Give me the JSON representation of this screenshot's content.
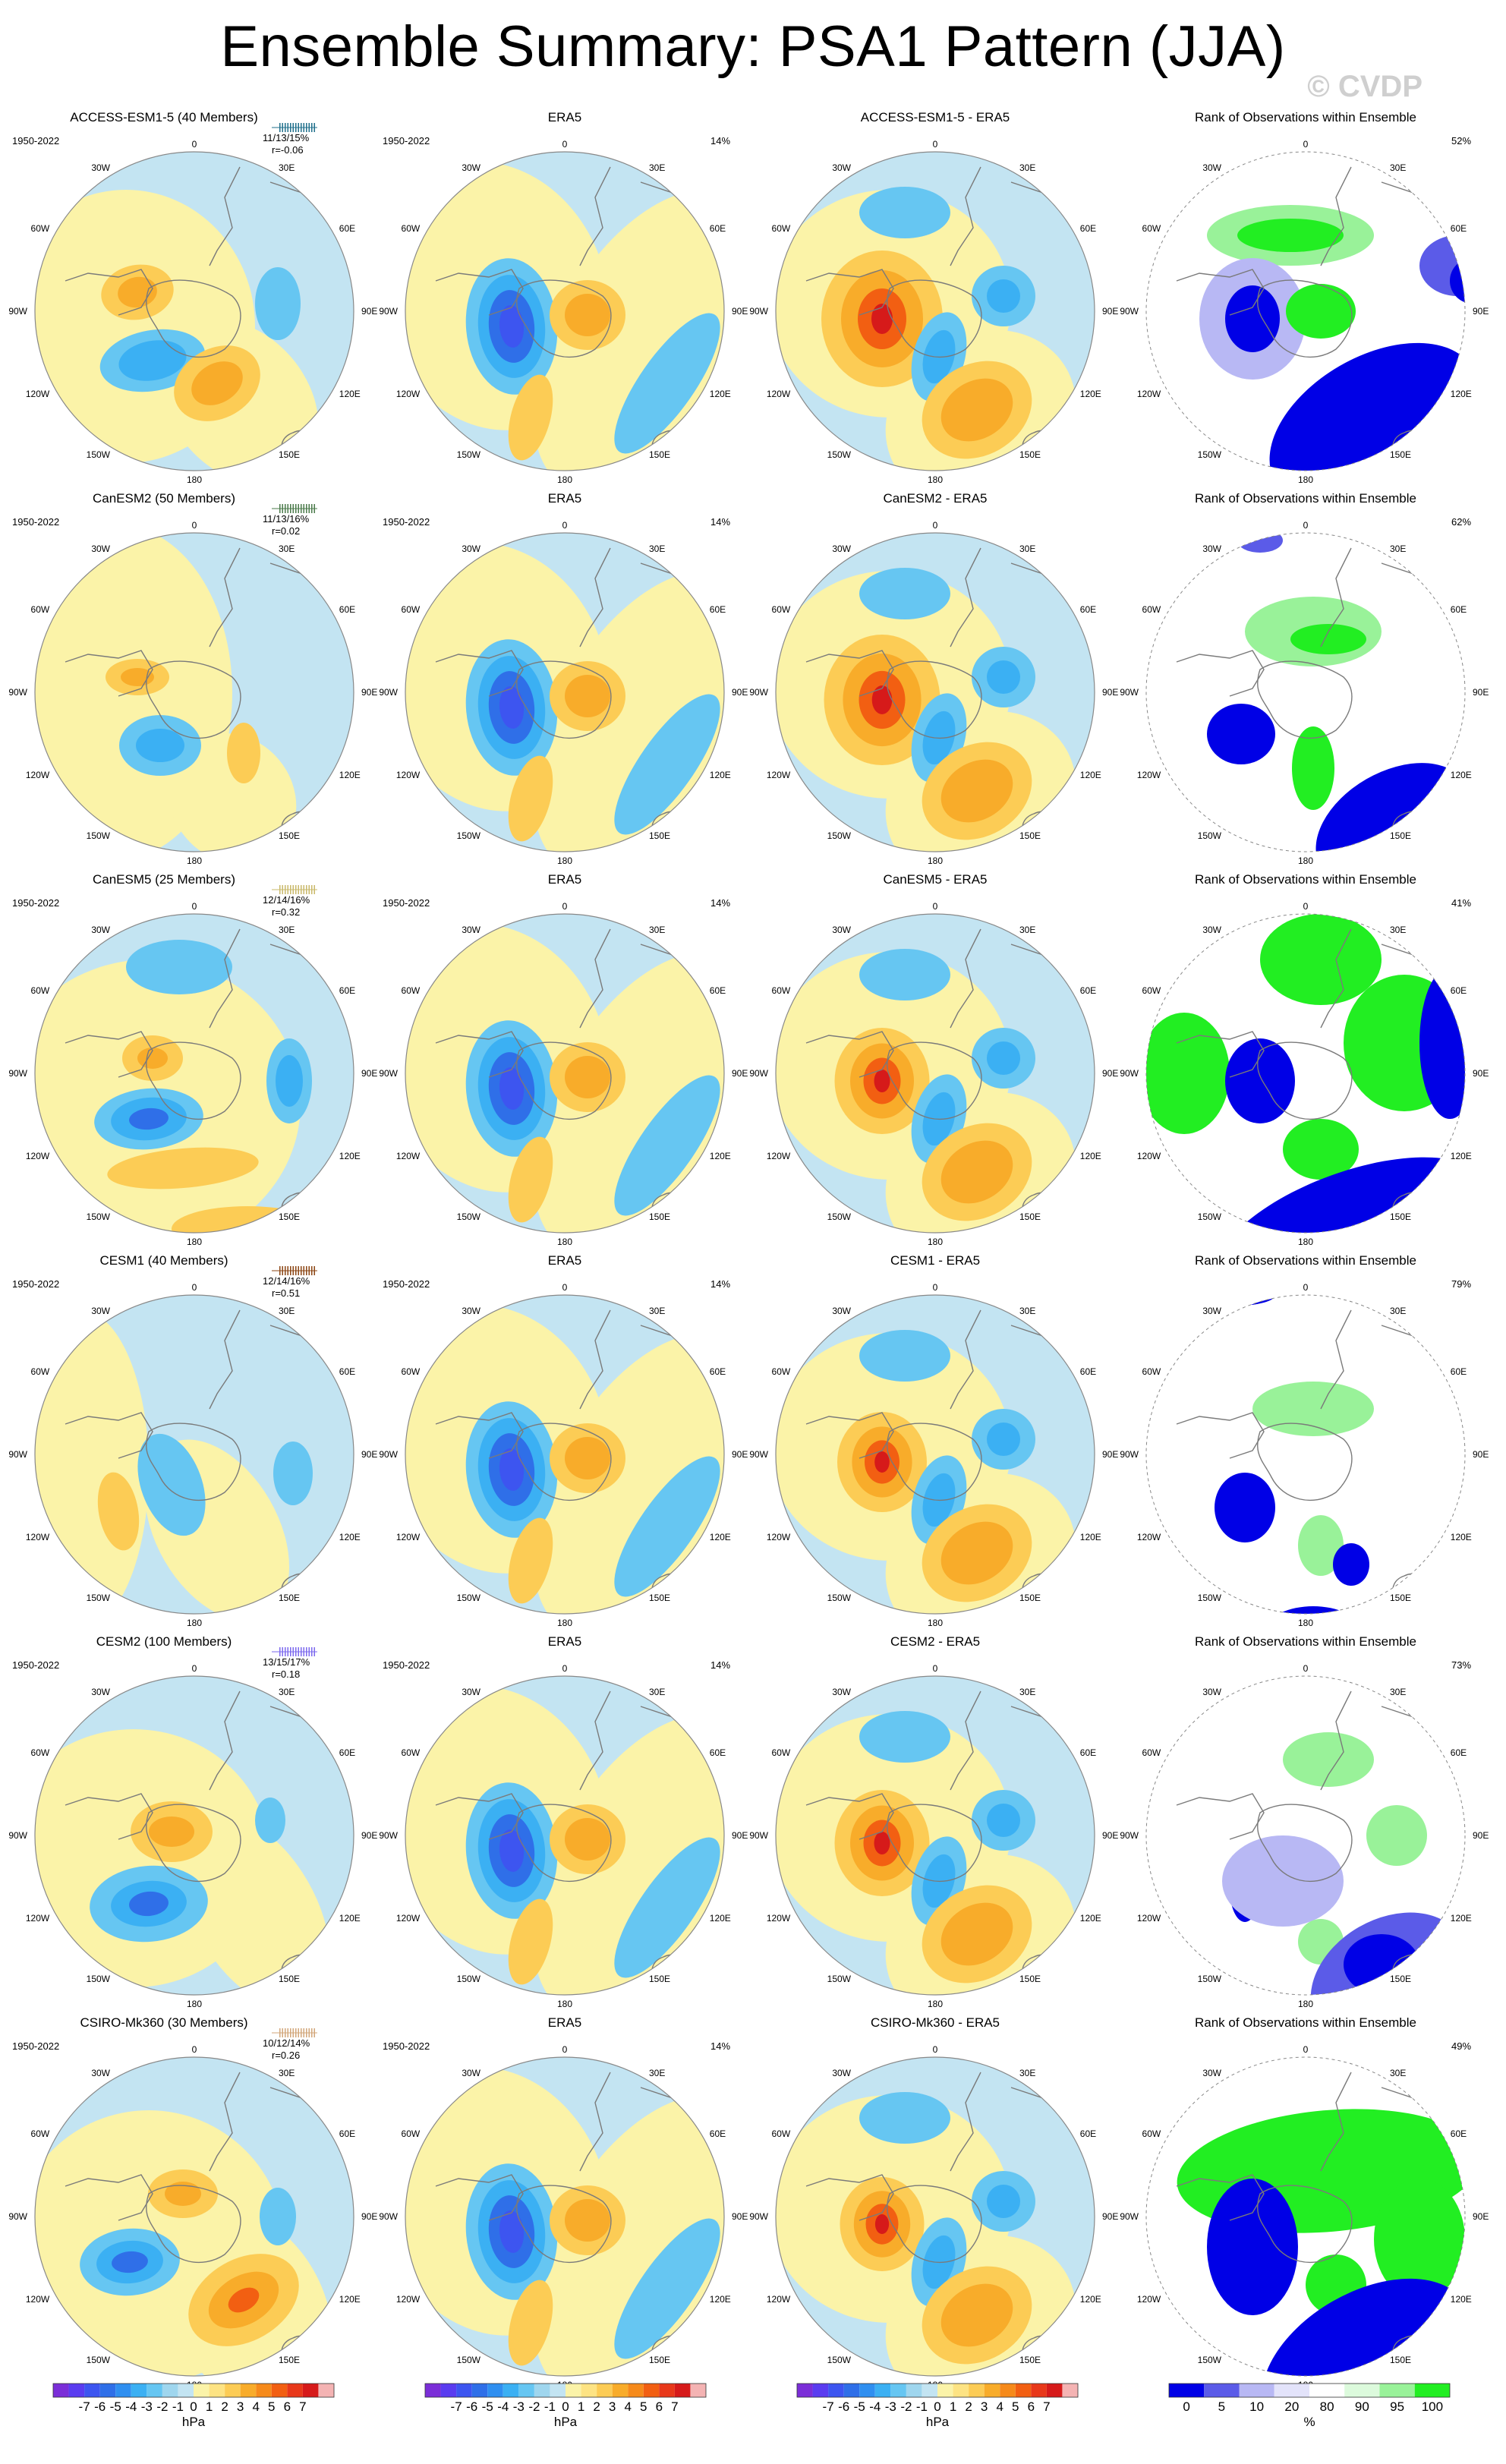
{
  "title": "Ensemble Summary: PSA1 Pattern (JJA)",
  "watermark": "© CVDP",
  "period": "1950-2022",
  "obs_name": "ERA5",
  "obs_pct": "14%",
  "rank_title": "Rank of Observations within Ensemble",
  "colors": {
    "model_colors": [
      "#1f6f8b",
      "#4a7a4a",
      "#c9b86a",
      "#8b4513",
      "#7b68ee",
      "#d2a679"
    ],
    "land_outline": "#7a7a7a",
    "circle": "#888888"
  },
  "lon_labels": {
    "top": "0",
    "bottom": "180",
    "right": [
      "30E",
      "60E",
      "90E",
      "120E",
      "150E"
    ],
    "left": [
      "30W",
      "60W",
      "90W",
      "120W",
      "150W"
    ]
  },
  "rows": [
    {
      "model": "ACCESS-ESM1-5 (40 Members)",
      "diff": "ACCESS-ESM1-5 - ERA5",
      "stats": "11/13/15%",
      "r": "r=-0.06",
      "rank_pct": "52%"
    },
    {
      "model": "CanESM2 (50 Members)",
      "diff": "CanESM2 - ERA5",
      "stats": "11/13/16%",
      "r": "r=0.02",
      "rank_pct": "62%"
    },
    {
      "model": "CanESM5 (25 Members)",
      "diff": "CanESM5 - ERA5",
      "stats": "12/14/16%",
      "r": "r=0.32",
      "rank_pct": "41%"
    },
    {
      "model": "CESM1 (40 Members)",
      "diff": "CESM1 - ERA5",
      "stats": "12/14/16%",
      "r": "r=0.51",
      "rank_pct": "79%"
    },
    {
      "model": "CESM2 (100 Members)",
      "diff": "CESM2 - ERA5",
      "stats": "13/15/17%",
      "r": "r=0.18",
      "rank_pct": "73%"
    },
    {
      "model": "CSIRO-Mk360 (30 Members)",
      "diff": "CSIRO-Mk360 - ERA5",
      "stats": "10/12/14%",
      "r": "r=0.26",
      "rank_pct": "49%"
    }
  ],
  "colorbar_hpa": {
    "labels": [
      "-7",
      "-6",
      "-5",
      "-4",
      "-3",
      "-2",
      "-1",
      "0",
      "1",
      "2",
      "3",
      "4",
      "5",
      "6",
      "7"
    ],
    "units": "hPa",
    "colors": [
      "#7b2ed8",
      "#5a3cf0",
      "#3d55f0",
      "#2f6fe8",
      "#2f8ff0",
      "#3bb0f3",
      "#66c6f2",
      "#9fd6ee",
      "#c3e4f2",
      "#fbf3a8",
      "#fde383",
      "#fccc55",
      "#f8ac2a",
      "#f68a1a",
      "#f25f12",
      "#e8381a",
      "#d61a1a",
      "#f4b3b3"
    ]
  },
  "colorbar_rank": {
    "labels": [
      "0",
      "5",
      "10",
      "20",
      "80",
      "90",
      "95",
      "100"
    ],
    "units": "%",
    "colors": [
      "#0000e6",
      "#5b5be8",
      "#b8b8f4",
      "#e3e3fa",
      "#ffffff",
      "#dcfadc",
      "#99f299",
      "#22ee22"
    ]
  }
}
